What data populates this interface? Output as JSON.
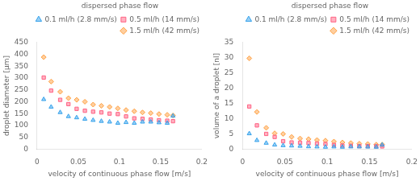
{
  "chart_data": [
    {
      "type": "scatter",
      "title": "dispersed phase flow",
      "x_label": "velocity of continuous phase flow [m/s]",
      "y_label": "droplet diameter [µm]",
      "xlim": [
        0,
        0.2
      ],
      "xticks": [
        0,
        0.05,
        0.1,
        0.15,
        0.2
      ],
      "ylim": [
        0,
        450
      ],
      "yticks": [
        0,
        50,
        100,
        150,
        200,
        250,
        300,
        350,
        400,
        450
      ],
      "grid": false,
      "legend": "upper right",
      "x": [
        0.008,
        0.017,
        0.028,
        0.038,
        0.048,
        0.058,
        0.068,
        0.078,
        0.088,
        0.098,
        0.108,
        0.118,
        0.128,
        0.138,
        0.148,
        0.158,
        0.165
      ],
      "series": [
        {
          "name": "0.1 ml/h (2.8 mm/s)",
          "marker": "triangle",
          "values": [
            210,
            178,
            155,
            138,
            133,
            127,
            122,
            118,
            115,
            110,
            113,
            110,
            115,
            115,
            112,
            110,
            140
          ]
        },
        {
          "name": "0.5 ml/h (14 mm/s)",
          "marker": "square",
          "values": [
            302,
            247,
            208,
            190,
            170,
            162,
            158,
            155,
            150,
            148,
            138,
            130,
            128,
            125,
            122,
            120,
            118
          ]
        },
        {
          "name": "1.5 ml/h (42 mm/s)",
          "marker": "diamond",
          "values": [
            388,
            285,
            242,
            215,
            208,
            200,
            188,
            183,
            178,
            172,
            165,
            160,
            155,
            152,
            148,
            145,
            142
          ]
        }
      ]
    },
    {
      "type": "scatter",
      "title": "dispersed phase flow",
      "x_label": "velocity of continuous phase flow [m/s]",
      "y_label": "volume of a droplet [nl]",
      "xlim": [
        0,
        0.2
      ],
      "xticks": [
        0,
        0.05,
        0.1,
        0.15,
        0.2
      ],
      "ylim": [
        0,
        35
      ],
      "yticks": [
        0,
        5,
        10,
        15,
        20,
        25,
        30,
        35
      ],
      "grid": false,
      "legend": "upper right",
      "x": [
        0.008,
        0.017,
        0.028,
        0.038,
        0.048,
        0.058,
        0.068,
        0.078,
        0.088,
        0.098,
        0.108,
        0.118,
        0.128,
        0.138,
        0.148,
        0.158,
        0.165
      ],
      "series": [
        {
          "name": "0.1 ml/h (2.8 mm/s)",
          "marker": "triangle",
          "values": [
            5.1,
            2.9,
            2.0,
            1.4,
            1.2,
            1.1,
            1.0,
            0.85,
            0.8,
            0.7,
            0.8,
            0.7,
            0.8,
            0.8,
            0.75,
            0.7,
            1.4
          ]
        },
        {
          "name": "0.5 ml/h (14 mm/s)",
          "marker": "square",
          "values": [
            14.0,
            7.8,
            5.0,
            4.0,
            2.6,
            2.2,
            2.1,
            2.0,
            1.8,
            1.7,
            1.4,
            1.2,
            1.1,
            1.0,
            1.0,
            0.95,
            0.9
          ]
        },
        {
          "name": "1.5 ml/h (42 mm/s)",
          "marker": "diamond",
          "values": [
            29.8,
            12.2,
            7.0,
            5.2,
            5.0,
            4.0,
            3.5,
            3.3,
            3.0,
            2.8,
            2.5,
            2.2,
            2.0,
            1.8,
            1.7,
            1.5,
            1.5
          ]
        }
      ]
    }
  ]
}
